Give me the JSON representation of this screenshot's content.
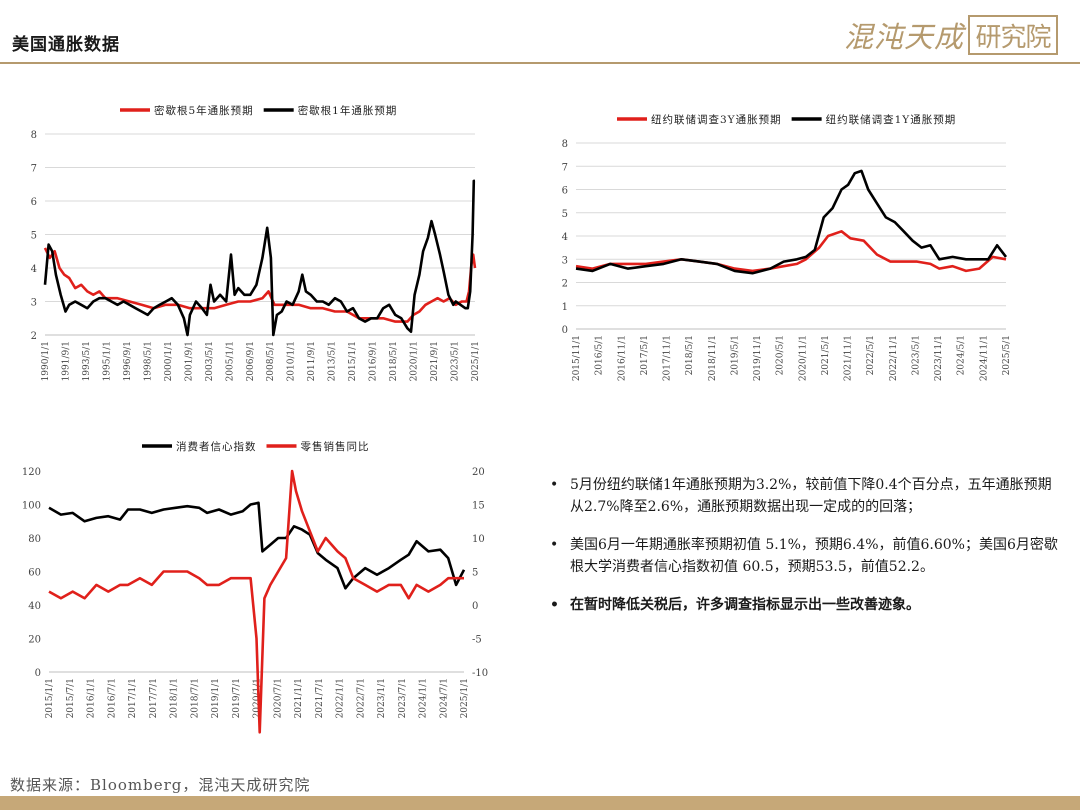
{
  "page": {
    "title": "美国通胀数据",
    "source": "数据来源：Bloomberg，混沌天成研究院"
  },
  "logo": {
    "text": "混沌天成",
    "box_text": "研究院",
    "color": "#b59a6e"
  },
  "bullets": [
    "5月份纽约联储1年通胀预期为3.2%，较前值下降0.4个百分点，五年通胀预期从2.7%降至2.6%，通胀预期数据出现一定成的的回落；",
    "美国6月一年期通胀率预期初值 5.1%，预期6.4%，前值6.60%；美国6月密歇根大学消费者信心指数初值 60.5，预期53.5，前值52.2。",
    "在暂时降低关税后，许多调查指标显示出一些改善迹象。"
  ],
  "chart_data": [
    {
      "type": "line",
      "x_start": 1990.0,
      "x_end": 2025.6,
      "ylim": [
        2,
        8
      ],
      "yticks": [
        2,
        3,
        4,
        5,
        6,
        7,
        8
      ],
      "xtick_labels": [
        "1990/1/1",
        "1991/9/1",
        "1993/5/1",
        "1995/1/1",
        "1996/9/1",
        "1998/5/1",
        "2000/1/1",
        "2001/9/1",
        "2003/5/1",
        "2005/1/1",
        "2006/9/1",
        "2008/5/1",
        "2010/1/1",
        "2011/9/1",
        "2013/5/1",
        "2015/1/1",
        "2016/9/1",
        "2018/5/1",
        "2020/1/1",
        "2021/9/1",
        "2023/5/1",
        "2025/1/1"
      ],
      "grid": true,
      "legend": "top",
      "series": [
        {
          "name": "密歇根5年通胀预期",
          "color": "#e0201b",
          "x": [
            1990.0,
            1990.4,
            1990.8,
            1991.2,
            1991.6,
            1992.0,
            1992.5,
            1993.0,
            1993.5,
            1994.0,
            1994.5,
            1995.0,
            1996.0,
            1997.0,
            1998.0,
            1999.0,
            2000.0,
            2001.0,
            2002.0,
            2003.0,
            2004.0,
            2005.0,
            2006.0,
            2007.0,
            2008.0,
            2008.5,
            2009.0,
            2010.0,
            2011.0,
            2012.0,
            2013.0,
            2014.0,
            2015.0,
            2016.0,
            2017.0,
            2018.0,
            2019.0,
            2020.0,
            2020.5,
            2021.0,
            2021.5,
            2022.0,
            2022.5,
            2023.0,
            2023.5,
            2024.0,
            2024.5,
            2024.9,
            2025.1,
            2025.3,
            2025.45,
            2025.6
          ],
          "y": [
            4.6,
            4.3,
            4.5,
            4.0,
            3.8,
            3.7,
            3.4,
            3.5,
            3.3,
            3.2,
            3.3,
            3.1,
            3.1,
            3.0,
            2.9,
            2.8,
            2.9,
            2.9,
            2.8,
            2.8,
            2.8,
            2.9,
            3.0,
            3.0,
            3.1,
            3.3,
            2.9,
            2.9,
            2.9,
            2.8,
            2.8,
            2.7,
            2.7,
            2.5,
            2.5,
            2.5,
            2.4,
            2.4,
            2.6,
            2.7,
            2.9,
            3.0,
            3.1,
            3.0,
            3.1,
            2.9,
            3.0,
            3.0,
            3.3,
            4.1,
            4.4,
            4.0
          ]
        },
        {
          "name": "密歇根1年通胀预期",
          "color": "#000000",
          "x": [
            1990.0,
            1990.3,
            1990.6,
            1990.9,
            1991.3,
            1991.7,
            1992.0,
            1992.5,
            1993.0,
            1993.5,
            1994.0,
            1994.5,
            1995.0,
            1995.5,
            1996.0,
            1996.5,
            1997.0,
            1997.5,
            1998.0,
            1998.5,
            1999.0,
            1999.5,
            2000.0,
            2000.5,
            2001.0,
            2001.5,
            2001.8,
            2002.0,
            2002.5,
            2003.0,
            2003.4,
            2003.7,
            2004.0,
            2004.5,
            2005.0,
            2005.4,
            2005.7,
            2006.0,
            2006.5,
            2007.0,
            2007.5,
            2008.0,
            2008.4,
            2008.7,
            2008.9,
            2009.2,
            2009.6,
            2010.0,
            2010.5,
            2011.0,
            2011.3,
            2011.6,
            2012.0,
            2012.5,
            2013.0,
            2013.5,
            2014.0,
            2014.5,
            2015.0,
            2015.5,
            2016.0,
            2016.5,
            2017.0,
            2017.5,
            2018.0,
            2018.5,
            2019.0,
            2019.5,
            2020.0,
            2020.3,
            2020.6,
            2021.0,
            2021.3,
            2021.7,
            2022.0,
            2022.3,
            2022.7,
            2023.0,
            2023.4,
            2023.8,
            2024.0,
            2024.4,
            2024.8,
            2025.0,
            2025.2,
            2025.4,
            2025.5,
            2025.6
          ],
          "y": [
            3.5,
            4.7,
            4.5,
            3.8,
            3.2,
            2.7,
            2.9,
            3.0,
            2.9,
            2.8,
            3.0,
            3.1,
            3.1,
            3.0,
            2.9,
            3.0,
            2.9,
            2.8,
            2.7,
            2.6,
            2.8,
            2.9,
            3.0,
            3.1,
            2.9,
            2.5,
            2.0,
            2.6,
            3.0,
            2.8,
            2.6,
            3.5,
            3.0,
            3.2,
            3.0,
            4.4,
            3.2,
            3.4,
            3.2,
            3.2,
            3.5,
            4.3,
            5.2,
            4.3,
            2.0,
            2.6,
            2.7,
            3.0,
            2.9,
            3.3,
            3.8,
            3.3,
            3.2,
            3.0,
            3.0,
            2.9,
            3.1,
            3.0,
            2.7,
            2.8,
            2.5,
            2.4,
            2.5,
            2.5,
            2.8,
            2.9,
            2.6,
            2.5,
            2.2,
            2.1,
            3.2,
            3.8,
            4.5,
            4.9,
            5.4,
            5.0,
            4.4,
            3.9,
            3.2,
            2.9,
            3.0,
            2.9,
            2.8,
            2.8,
            3.3,
            5.0,
            6.6,
            6.6
          ]
        }
      ]
    },
    {
      "type": "line",
      "x_start": 2015.83,
      "x_end": 2025.5,
      "ylim": [
        0,
        8
      ],
      "yticks": [
        0,
        1,
        2,
        3,
        4,
        5,
        6,
        7,
        8
      ],
      "xtick_labels": [
        "2015/11/1",
        "2016/5/1",
        "2016/11/1",
        "2017/5/1",
        "2017/11/1",
        "2018/5/1",
        "2018/11/1",
        "2019/5/1",
        "2019/11/1",
        "2020/5/1",
        "2020/11/1",
        "2021/5/1",
        "2021/11/1",
        "2022/5/1",
        "2022/11/1",
        "2023/5/1",
        "2023/11/1",
        "2024/5/1",
        "2024/11/1",
        "2025/5/1"
      ],
      "grid": true,
      "legend": "top",
      "series": [
        {
          "name": "纽约联储调查3Y通胀预期",
          "color": "#e0201b",
          "x": [
            2015.83,
            2016.2,
            2016.6,
            2017.0,
            2017.4,
            2017.8,
            2018.2,
            2018.6,
            2019.0,
            2019.4,
            2019.8,
            2020.2,
            2020.5,
            2020.8,
            2021.0,
            2021.3,
            2021.5,
            2021.8,
            2022.0,
            2022.3,
            2022.6,
            2022.9,
            2023.2,
            2023.5,
            2023.8,
            2024.0,
            2024.3,
            2024.6,
            2024.9,
            2025.2,
            2025.5
          ],
          "y": [
            2.7,
            2.6,
            2.8,
            2.8,
            2.8,
            2.9,
            3.0,
            2.9,
            2.8,
            2.6,
            2.5,
            2.6,
            2.7,
            2.8,
            3.0,
            3.5,
            4.0,
            4.2,
            3.9,
            3.8,
            3.2,
            2.9,
            2.9,
            2.9,
            2.8,
            2.6,
            2.7,
            2.5,
            2.6,
            3.1,
            3.0
          ]
        },
        {
          "name": "纽约联储调查1Y通胀预期",
          "color": "#000000",
          "x": [
            2015.83,
            2016.2,
            2016.6,
            2017.0,
            2017.4,
            2017.8,
            2018.2,
            2018.6,
            2019.0,
            2019.4,
            2019.8,
            2020.2,
            2020.5,
            2020.8,
            2021.0,
            2021.2,
            2021.4,
            2021.6,
            2021.8,
            2021.95,
            2022.1,
            2022.25,
            2022.4,
            2022.6,
            2022.8,
            2023.0,
            2023.2,
            2023.4,
            2023.6,
            2023.8,
            2024.0,
            2024.3,
            2024.6,
            2024.9,
            2025.1,
            2025.3,
            2025.5
          ],
          "y": [
            2.6,
            2.5,
            2.8,
            2.6,
            2.7,
            2.8,
            3.0,
            2.9,
            2.8,
            2.5,
            2.4,
            2.6,
            2.9,
            3.0,
            3.1,
            3.4,
            4.8,
            5.2,
            6.0,
            6.2,
            6.7,
            6.8,
            6.0,
            5.4,
            4.8,
            4.6,
            4.2,
            3.8,
            3.5,
            3.6,
            3.0,
            3.1,
            3.0,
            3.0,
            3.0,
            3.6,
            3.1
          ]
        }
      ]
    },
    {
      "type": "line",
      "x_start": 2015.0,
      "x_end": 2025.5,
      "ylim": [
        0,
        120
      ],
      "yticks": [
        0,
        20,
        40,
        60,
        80,
        100,
        120
      ],
      "y2lim": [
        -10,
        20
      ],
      "y2ticks": [
        -10,
        -5,
        0,
        5,
        10,
        15,
        20
      ],
      "xtick_labels": [
        "2015/1/1",
        "2015/7/1",
        "2016/1/1",
        "2016/7/1",
        "2017/1/1",
        "2017/7/1",
        "2018/1/1",
        "2018/7/1",
        "2019/1/1",
        "2019/7/1",
        "2020/1/1",
        "2020/7/1",
        "2021/1/1",
        "2021/7/1",
        "2022/1/1",
        "2022/7/1",
        "2023/1/1",
        "2023/7/1",
        "2024/1/1",
        "2024/7/1",
        "2025/1/1"
      ],
      "grid": false,
      "legend": "top",
      "series": [
        {
          "name": "消费者信心指数",
          "color": "#000000",
          "axis": "left",
          "x": [
            2015.0,
            2015.3,
            2015.6,
            2015.9,
            2016.2,
            2016.5,
            2016.8,
            2017.0,
            2017.3,
            2017.6,
            2017.9,
            2018.2,
            2018.5,
            2018.8,
            2019.0,
            2019.3,
            2019.6,
            2019.9,
            2020.1,
            2020.3,
            2020.4,
            2020.6,
            2020.8,
            2021.0,
            2021.2,
            2021.4,
            2021.6,
            2021.8,
            2022.0,
            2022.3,
            2022.5,
            2022.7,
            2023.0,
            2023.3,
            2023.6,
            2023.9,
            2024.1,
            2024.3,
            2024.6,
            2024.9,
            2025.1,
            2025.3,
            2025.5
          ],
          "y": [
            98,
            94,
            95,
            90,
            92,
            93,
            91,
            97,
            97,
            95,
            97,
            98,
            99,
            98,
            95,
            97,
            94,
            96,
            100,
            101,
            72,
            76,
            80,
            80,
            87,
            85,
            82,
            71,
            67,
            62,
            50,
            56,
            62,
            58,
            62,
            67,
            70,
            78,
            72,
            73,
            68,
            52,
            61
          ]
        },
        {
          "name": "零售销售同比",
          "color": "#e0201b",
          "axis": "right",
          "x": [
            2015.0,
            2015.3,
            2015.6,
            2015.9,
            2016.2,
            2016.5,
            2016.8,
            2017.0,
            2017.3,
            2017.6,
            2017.9,
            2018.2,
            2018.5,
            2018.8,
            2019.0,
            2019.3,
            2019.6,
            2019.9,
            2020.1,
            2020.25,
            2020.33,
            2020.45,
            2020.6,
            2020.8,
            2021.0,
            2021.15,
            2021.25,
            2021.4,
            2021.6,
            2021.8,
            2022.0,
            2022.3,
            2022.5,
            2022.7,
            2023.0,
            2023.3,
            2023.6,
            2023.9,
            2024.1,
            2024.3,
            2024.6,
            2024.9,
            2025.1,
            2025.3,
            2025.5
          ],
          "y": [
            2,
            1,
            2,
            1,
            3,
            2,
            3,
            3,
            4,
            3,
            5,
            5,
            5,
            4,
            3,
            3,
            4,
            4,
            4,
            -5,
            -19,
            1,
            3,
            5,
            7,
            20,
            17,
            14,
            11,
            8,
            10,
            8,
            7,
            4,
            3,
            2,
            3,
            3,
            1,
            3,
            2,
            3,
            4,
            4,
            4
          ]
        }
      ]
    }
  ]
}
